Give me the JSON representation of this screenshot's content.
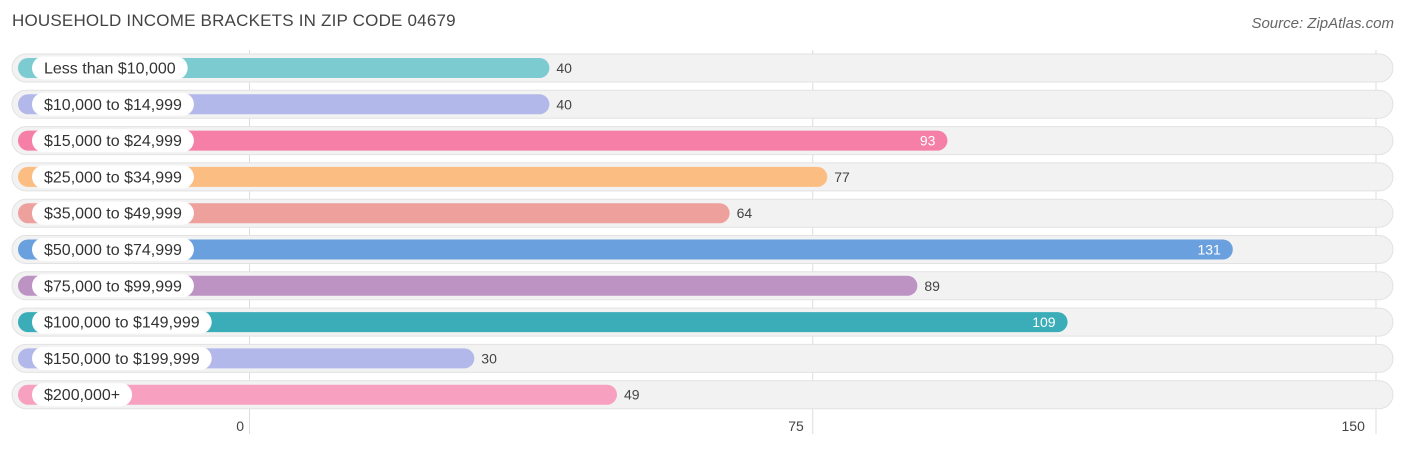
{
  "title": "HOUSEHOLD INCOME BRACKETS IN ZIP CODE 04679",
  "source": "Source: ZipAtlas.com",
  "chart_data": {
    "type": "bar",
    "orientation": "horizontal",
    "title": "HOUSEHOLD INCOME BRACKETS IN ZIP CODE 04679",
    "xlabel": "",
    "ylabel": "",
    "xlim": [
      0,
      150
    ],
    "xticks": [
      0,
      75,
      150
    ],
    "xtick_labels": [
      "0",
      "75",
      "150"
    ],
    "grid": true,
    "legend": "none",
    "categories": [
      "Less than $10,000",
      "$10,000 to $14,999",
      "$15,000 to $24,999",
      "$25,000 to $34,999",
      "$35,000 to $49,999",
      "$50,000 to $74,999",
      "$75,000 to $99,999",
      "$100,000 to $149,999",
      "$150,000 to $199,999",
      "$200,000+"
    ],
    "values": [
      40,
      40,
      93,
      77,
      64,
      131,
      89,
      109,
      30,
      49
    ],
    "value_labels": [
      "40",
      "40",
      "93",
      "77",
      "64",
      "131",
      "89",
      "109",
      "30",
      "49"
    ],
    "colors": [
      "#7ccbd1",
      "#b3b8ea",
      "#f57fa6",
      "#fbbd82",
      "#eea09c",
      "#6aa0de",
      "#bd93c4",
      "#3aadb9",
      "#b3b8ea",
      "#f7a0bf"
    ],
    "value_label_inside": [
      false,
      false,
      true,
      false,
      false,
      true,
      false,
      true,
      false,
      false
    ]
  }
}
